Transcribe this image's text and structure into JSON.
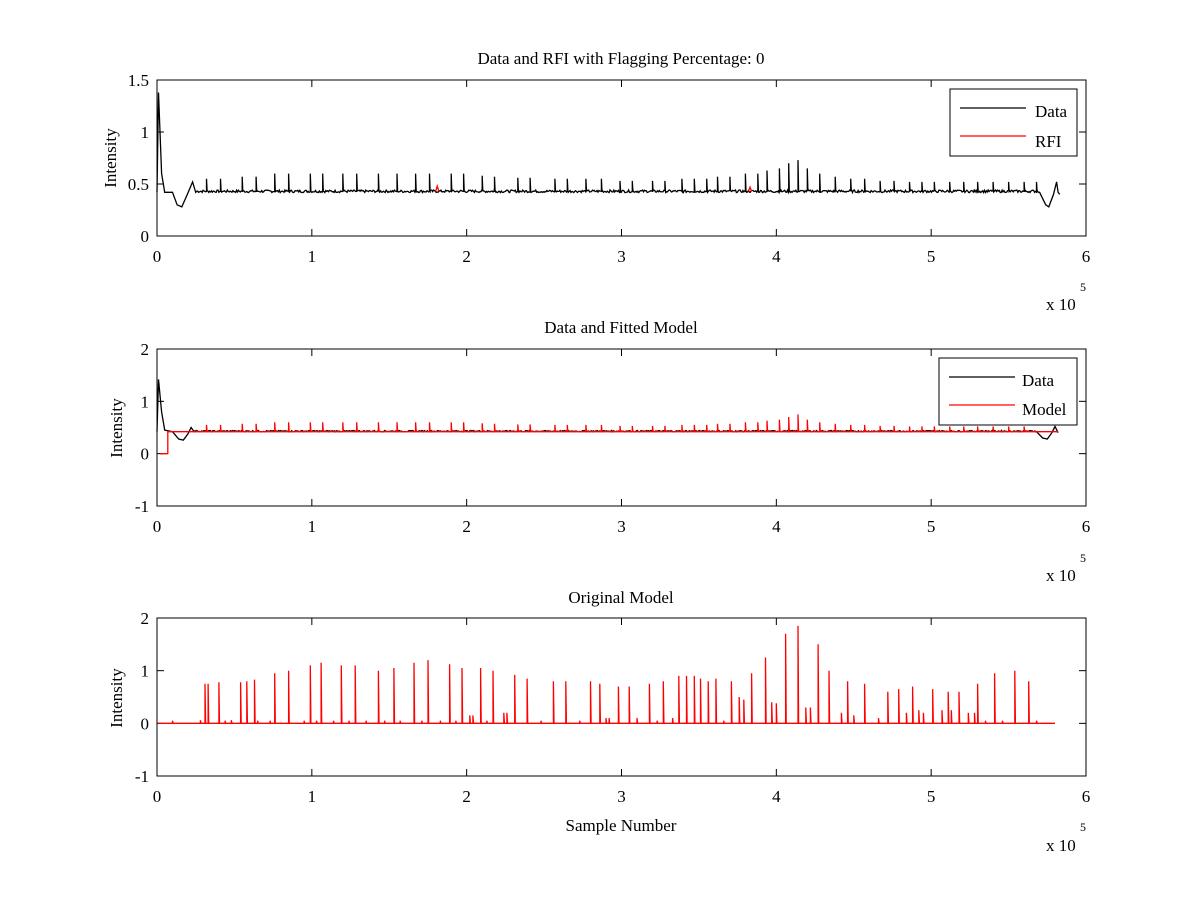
{
  "chart_data": [
    {
      "type": "line",
      "title": "Data and RFI with Flagging Percentage: 0",
      "xlabel": "",
      "ylabel": "Intensity",
      "xlim": [
        0,
        6
      ],
      "ylim": [
        0,
        1.5
      ],
      "x_ticks": [
        "0",
        "1",
        "2",
        "3",
        "4",
        "5",
        "6"
      ],
      "y_ticks": [
        "0",
        "0.5",
        "1",
        "1.5"
      ],
      "x_multiplier": {
        "base": "x 10",
        "exponent": "5"
      },
      "grid": false,
      "legend": {
        "position": "top-right",
        "entries": [
          "Data",
          "RFI"
        ]
      },
      "series": [
        {
          "name": "Data",
          "color": "#000000",
          "baseline": 0.43,
          "start_feature": [
            [
              0,
              0.42
            ],
            [
              0.01,
              1.38
            ],
            [
              0.03,
              0.6
            ],
            [
              0.05,
              0.42
            ],
            [
              0.1,
              0.42
            ],
            [
              0.13,
              0.3
            ],
            [
              0.16,
              0.28
            ],
            [
              0.19,
              0.38
            ],
            [
              0.21,
              0.45
            ],
            [
              0.23,
              0.52
            ],
            [
              0.25,
              0.42
            ]
          ],
          "end_feature": [
            [
              5.7,
              0.42
            ],
            [
              5.74,
              0.3
            ],
            [
              5.76,
              0.28
            ],
            [
              5.79,
              0.4
            ],
            [
              5.81,
              0.52
            ],
            [
              5.82,
              0.42
            ],
            [
              5.83,
              0.4
            ]
          ],
          "spikes_x": [
            0.32,
            0.41,
            0.55,
            0.64,
            0.76,
            0.85,
            0.99,
            1.07,
            1.2,
            1.29,
            1.43,
            1.55,
            1.67,
            1.76,
            1.9,
            1.98,
            2.1,
            2.18,
            2.33,
            2.41,
            2.57,
            2.65,
            2.77,
            2.87,
            2.99,
            3.07,
            3.2,
            3.28,
            3.39,
            3.47,
            3.55,
            3.62,
            3.7,
            3.8,
            3.88,
            3.94,
            4.02,
            4.08,
            4.14,
            4.2,
            4.28,
            4.38,
            4.48,
            4.57,
            4.67,
            4.76,
            4.86,
            4.94,
            5.02,
            5.12,
            5.21,
            5.3,
            5.4,
            5.5,
            5.6,
            5.68
          ],
          "spikes_y": [
            0.55,
            0.55,
            0.57,
            0.57,
            0.6,
            0.6,
            0.6,
            0.6,
            0.6,
            0.6,
            0.6,
            0.6,
            0.6,
            0.6,
            0.6,
            0.6,
            0.58,
            0.57,
            0.56,
            0.56,
            0.55,
            0.55,
            0.55,
            0.55,
            0.53,
            0.53,
            0.53,
            0.53,
            0.55,
            0.55,
            0.55,
            0.57,
            0.57,
            0.6,
            0.6,
            0.63,
            0.65,
            0.7,
            0.73,
            0.65,
            0.6,
            0.57,
            0.55,
            0.55,
            0.53,
            0.53,
            0.52,
            0.52,
            0.52,
            0.52,
            0.52,
            0.52,
            0.52,
            0.52,
            0.52,
            0.52
          ]
        },
        {
          "name": "RFI",
          "color": "#ff0000",
          "points": [
            [
              1.8,
              0.43
            ],
            [
              1.81,
              0.48
            ],
            [
              1.82,
              0.43
            ],
            [
              3.82,
              0.43
            ],
            [
              3.83,
              0.47
            ],
            [
              3.84,
              0.43
            ]
          ]
        }
      ]
    },
    {
      "type": "line",
      "title": "Data and Fitted Model",
      "xlabel": "",
      "ylabel": "Intensity",
      "xlim": [
        0,
        6
      ],
      "ylim": [
        -1,
        2
      ],
      "x_ticks": [
        "0",
        "1",
        "2",
        "3",
        "4",
        "5",
        "6"
      ],
      "y_ticks": [
        "-1",
        "0",
        "1",
        "2"
      ],
      "x_multiplier": {
        "base": "x 10",
        "exponent": "5"
      },
      "grid": false,
      "legend": {
        "position": "top-right",
        "entries": [
          "Data",
          "Model"
        ]
      },
      "series": [
        {
          "name": "Data",
          "color": "#000000",
          "baseline": 0.43,
          "start_feature": [
            [
              0,
              0.42
            ],
            [
              0.01,
              1.42
            ],
            [
              0.03,
              0.8
            ],
            [
              0.05,
              0.45
            ],
            [
              0.1,
              0.42
            ],
            [
              0.14,
              0.28
            ],
            [
              0.17,
              0.26
            ],
            [
              0.2,
              0.38
            ],
            [
              0.22,
              0.5
            ],
            [
              0.24,
              0.42
            ]
          ],
          "end_feature": [
            [
              5.68,
              0.42
            ],
            [
              5.72,
              0.3
            ],
            [
              5.75,
              0.28
            ],
            [
              5.78,
              0.4
            ],
            [
              5.8,
              0.52
            ],
            [
              5.82,
              0.4
            ]
          ]
        },
        {
          "name": "Model",
          "color": "#ff0000",
          "baseline": 0.42,
          "start_step": [
            [
              0.02,
              0
            ],
            [
              0.07,
              0
            ],
            [
              0.07,
              0.42
            ]
          ],
          "spikes_x": [
            0.32,
            0.41,
            0.55,
            0.64,
            0.76,
            0.85,
            0.99,
            1.07,
            1.2,
            1.29,
            1.43,
            1.55,
            1.67,
            1.76,
            1.9,
            1.98,
            2.1,
            2.18,
            2.33,
            2.41,
            2.57,
            2.65,
            2.77,
            2.87,
            2.99,
            3.07,
            3.2,
            3.28,
            3.39,
            3.47,
            3.55,
            3.62,
            3.7,
            3.8,
            3.88,
            3.94,
            4.02,
            4.08,
            4.14,
            4.2,
            4.28,
            4.38,
            4.48,
            4.57,
            4.67,
            4.76,
            4.86,
            4.94,
            5.02,
            5.12,
            5.21,
            5.3,
            5.4,
            5.5,
            5.6
          ],
          "spikes_y": [
            0.55,
            0.55,
            0.57,
            0.57,
            0.6,
            0.6,
            0.6,
            0.6,
            0.6,
            0.6,
            0.6,
            0.6,
            0.6,
            0.6,
            0.6,
            0.6,
            0.58,
            0.57,
            0.56,
            0.56,
            0.55,
            0.55,
            0.55,
            0.55,
            0.53,
            0.53,
            0.53,
            0.53,
            0.55,
            0.55,
            0.55,
            0.57,
            0.57,
            0.6,
            0.6,
            0.63,
            0.65,
            0.7,
            0.75,
            0.65,
            0.6,
            0.57,
            0.55,
            0.55,
            0.53,
            0.53,
            0.52,
            0.52,
            0.52,
            0.52,
            0.52,
            0.52,
            0.52,
            0.52,
            0.52
          ]
        }
      ]
    },
    {
      "type": "line",
      "title": "Original Model",
      "xlabel": "Sample Number",
      "ylabel": "Intensity",
      "xlim": [
        0,
        6
      ],
      "ylim": [
        -1,
        2
      ],
      "x_ticks": [
        "0",
        "1",
        "2",
        "3",
        "4",
        "5",
        "6"
      ],
      "y_ticks": [
        "-1",
        "0",
        "1",
        "2"
      ],
      "x_multiplier": {
        "base": "x 10",
        "exponent": "5"
      },
      "grid": false,
      "series": [
        {
          "color": "#ff0000",
          "baseline": 0,
          "x_end": 5.8,
          "spikes_x": [
            0.1,
            0.28,
            0.31,
            0.33,
            0.4,
            0.44,
            0.48,
            0.54,
            0.58,
            0.63,
            0.65,
            0.73,
            0.76,
            0.85,
            0.95,
            0.99,
            1.03,
            1.06,
            1.14,
            1.19,
            1.24,
            1.28,
            1.35,
            1.43,
            1.47,
            1.53,
            1.57,
            1.66,
            1.71,
            1.75,
            1.83,
            1.89,
            1.93,
            1.97,
            2.02,
            2.04,
            2.09,
            2.13,
            2.17,
            2.24,
            2.26,
            2.31,
            2.39,
            2.48,
            2.56,
            2.64,
            2.73,
            2.8,
            2.86,
            2.9,
            2.92,
            2.98,
            3.05,
            3.1,
            3.18,
            3.23,
            3.27,
            3.33,
            3.37,
            3.42,
            3.47,
            3.51,
            3.56,
            3.61,
            3.66,
            3.71,
            3.76,
            3.79,
            3.84,
            3.93,
            3.97,
            4.0,
            4.06,
            4.14,
            4.19,
            4.22,
            4.27,
            4.34,
            4.42,
            4.46,
            4.5,
            4.57,
            4.66,
            4.72,
            4.79,
            4.84,
            4.88,
            4.92,
            4.95,
            5.01,
            5.07,
            5.11,
            5.13,
            5.18,
            5.24,
            5.28,
            5.3,
            5.35,
            5.41,
            5.46,
            5.54,
            5.63,
            5.68
          ],
          "spikes_y": [
            0.05,
            0.06,
            0.75,
            0.75,
            0.78,
            0.05,
            0.06,
            0.78,
            0.8,
            0.83,
            0.05,
            0.05,
            0.95,
            1.0,
            0.05,
            1.1,
            0.05,
            1.15,
            0.05,
            1.1,
            0.05,
            1.1,
            0.05,
            1.0,
            0.05,
            1.05,
            0.05,
            1.15,
            0.05,
            1.2,
            0.05,
            1.12,
            0.05,
            1.05,
            0.15,
            0.15,
            1.05,
            0.05,
            1.0,
            0.2,
            0.2,
            0.92,
            0.85,
            0.05,
            0.8,
            0.8,
            0.05,
            0.8,
            0.75,
            0.1,
            0.1,
            0.7,
            0.7,
            0.1,
            0.75,
            0.05,
            0.8,
            0.1,
            0.9,
            0.9,
            0.9,
            0.85,
            0.8,
            0.85,
            0.05,
            0.8,
            0.5,
            0.45,
            0.95,
            1.25,
            0.4,
            0.38,
            1.7,
            1.85,
            0.3,
            0.3,
            1.5,
            1.0,
            0.2,
            0.8,
            0.15,
            0.75,
            0.1,
            0.6,
            0.65,
            0.2,
            0.7,
            0.25,
            0.2,
            0.65,
            0.25,
            0.6,
            0.25,
            0.6,
            0.2,
            0.2,
            0.75,
            0.05,
            0.95,
            0.05,
            1.0,
            0.8,
            0.05
          ]
        }
      ]
    }
  ]
}
